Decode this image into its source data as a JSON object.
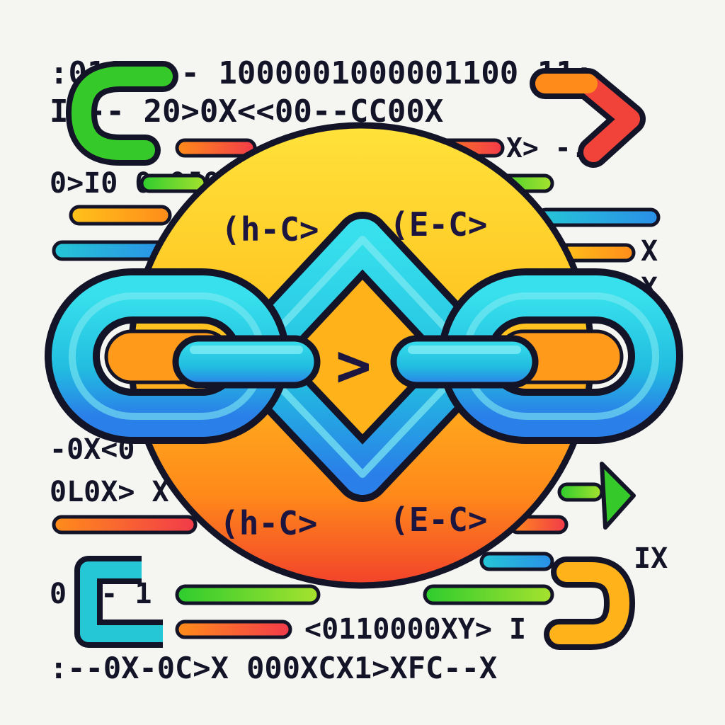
{
  "colors": {
    "background": "#f5f5f2",
    "outline": "#141428",
    "circle_yellow": "#ffd21f",
    "circle_orange": "#ff8a1a",
    "circle_red": "#f2422b",
    "chain_cyan": "#2bd0e0",
    "chain_blue": "#2a8fe8",
    "accent_green": "#2ecc2e",
    "accent_red": "#f23a4a",
    "accent_orange": "#ff8c1a",
    "accent_yellow": "#ffc21a",
    "accent_teal": "#25c6d6"
  },
  "code_rows": [
    ":0111:-- 1000001000001100 11:",
    "I  -- 20>0X<<00--CC00X",
    "X>  -.Z",
    "0>I0  0>0J0Y",
    "X",
    "X",
    "-0X<0 0X",
    "0L0X> X",
    "IX",
    "0  -- 1",
    "<0110000XY>  I",
    ":--0X-0C>X 000XCX1>XFC--X"
  ],
  "center_tags": {
    "top_left": "(h-C>",
    "top_right": "(E-C>",
    "bottom_left": "(h-C>",
    "bottom_right": "(E-C>",
    "middle_chevron": ">"
  },
  "icons": [
    "link-chain-icon",
    "arrow-left-icon",
    "arrow-right-icon",
    "code-tag-icon"
  ]
}
